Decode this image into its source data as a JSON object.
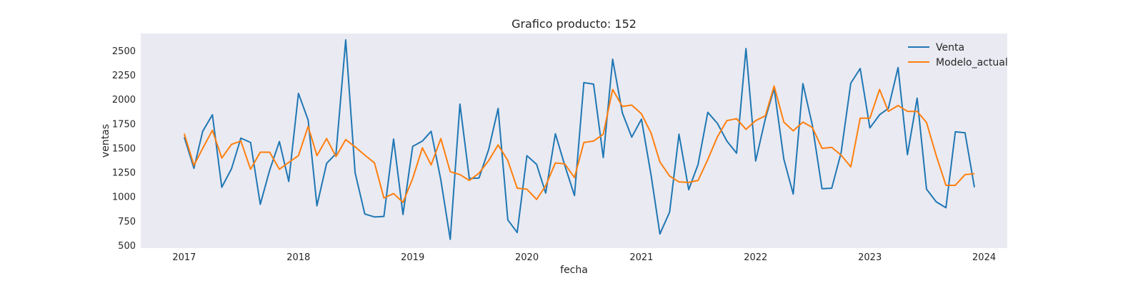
{
  "chart_data": {
    "type": "line",
    "title": "Grafico producto: 152",
    "xlabel": "fecha",
    "ylabel": "ventas",
    "xlim": [
      "2016-08-15",
      "2024-03-15"
    ],
    "ylim": [
      470,
      2675
    ],
    "x_ticks": [
      "2017-01-01",
      "2018-01-01",
      "2019-01-01",
      "2020-01-01",
      "2021-01-01",
      "2022-01-01",
      "2023-01-01",
      "2024-01-01"
    ],
    "x_tick_labels": [
      "2017",
      "2018",
      "2019",
      "2020",
      "2021",
      "2022",
      "2023",
      "2024"
    ],
    "y_ticks": [
      500,
      750,
      1000,
      1250,
      1500,
      1750,
      2000,
      2250,
      2500
    ],
    "grid": false,
    "background": "#eaeaf2",
    "legend_position": "top-right",
    "x": [
      "2017-01",
      "2017-02",
      "2017-03",
      "2017-04",
      "2017-05",
      "2017-06",
      "2017-07",
      "2017-08",
      "2017-09",
      "2017-10",
      "2017-11",
      "2017-12",
      "2018-01",
      "2018-02",
      "2018-03",
      "2018-04",
      "2018-05",
      "2018-06",
      "2018-07",
      "2018-08",
      "2018-09",
      "2018-10",
      "2018-11",
      "2018-12",
      "2019-01",
      "2019-02",
      "2019-03",
      "2019-04",
      "2019-05",
      "2019-06",
      "2019-07",
      "2019-08",
      "2019-09",
      "2019-10",
      "2019-11",
      "2019-12",
      "2020-01",
      "2020-02",
      "2020-03",
      "2020-04",
      "2020-05",
      "2020-06",
      "2020-07",
      "2020-08",
      "2020-09",
      "2020-10",
      "2020-11",
      "2020-12",
      "2021-01",
      "2021-02",
      "2021-03",
      "2021-04",
      "2021-05",
      "2021-06",
      "2021-07",
      "2021-08",
      "2021-09",
      "2021-10",
      "2021-11",
      "2021-12",
      "2022-01",
      "2022-02",
      "2022-03",
      "2022-04",
      "2022-05",
      "2022-06",
      "2022-07",
      "2022-08",
      "2022-09",
      "2022-10",
      "2022-11",
      "2022-12",
      "2023-01",
      "2023-02",
      "2023-03",
      "2023-04",
      "2023-05",
      "2023-06",
      "2023-07",
      "2023-08",
      "2023-09",
      "2023-10",
      "2023-11",
      "2023-12"
    ],
    "series": [
      {
        "name": "Venta",
        "color": "#1f77b4",
        "values": [
          1610,
          1290,
          1670,
          1840,
          1095,
          1285,
          1600,
          1555,
          920,
          1270,
          1565,
          1155,
          2060,
          1785,
          905,
          1340,
          1440,
          2610,
          1245,
          820,
          790,
          795,
          1590,
          815,
          1515,
          1570,
          1670,
          1170,
          560,
          1950,
          1185,
          1190,
          1485,
          1905,
          760,
          630,
          1420,
          1330,
          1035,
          1645,
          1320,
          1010,
          2170,
          2155,
          1400,
          2410,
          1860,
          1610,
          1795,
          1215,
          615,
          840,
          1640,
          1070,
          1330,
          1865,
          1750,
          1570,
          1445,
          2520,
          1365,
          1800,
          2110,
          1385,
          1025,
          2160,
          1735,
          1080,
          1085,
          1450,
          2165,
          2315,
          1705,
          1840,
          1905,
          2325,
          1430,
          2010,
          1075,
          945,
          885,
          1665,
          1655,
          1095
        ]
      },
      {
        "name": "Modelo_actual",
        "color": "#ff7f0e",
        "values": [
          1645,
          1320,
          1495,
          1680,
          1395,
          1535,
          1570,
          1280,
          1455,
          1455,
          1280,
          1350,
          1420,
          1720,
          1420,
          1595,
          1410,
          1585,
          1510,
          1425,
          1345,
          985,
          1030,
          940,
          1185,
          1500,
          1325,
          1595,
          1255,
          1225,
          1165,
          1240,
          1370,
          1530,
          1370,
          1085,
          1075,
          970,
          1110,
          1345,
          1335,
          1195,
          1555,
          1570,
          1640,
          2100,
          1925,
          1940,
          1850,
          1650,
          1355,
          1210,
          1150,
          1145,
          1165,
          1380,
          1615,
          1780,
          1800,
          1690,
          1780,
          1830,
          2135,
          1765,
          1675,
          1765,
          1710,
          1495,
          1505,
          1425,
          1305,
          1805,
          1805,
          2100,
          1875,
          1935,
          1875,
          1875,
          1760,
          1420,
          1115,
          1115,
          1225,
          1235
        ]
      }
    ]
  }
}
